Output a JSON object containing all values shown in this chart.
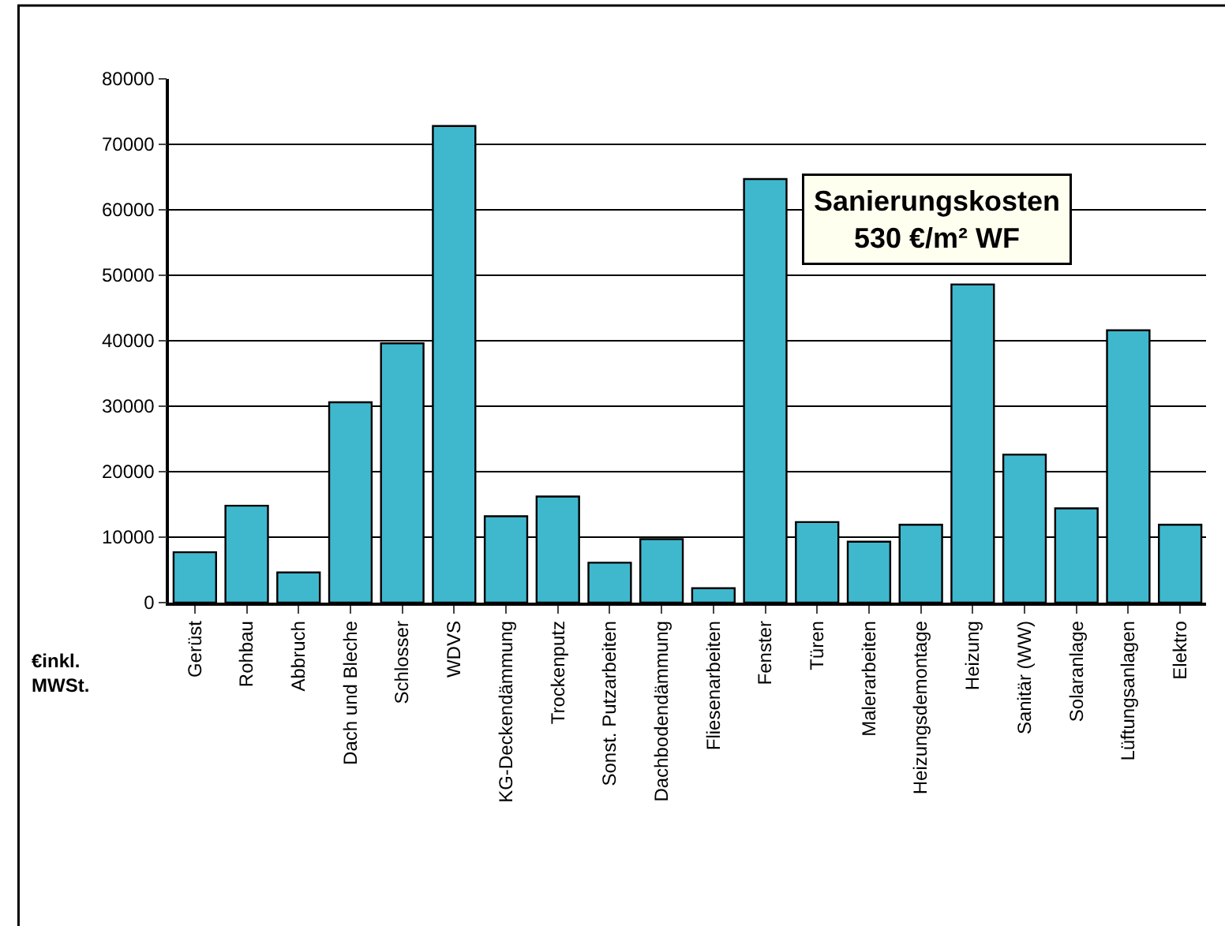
{
  "chart_data": {
    "type": "bar",
    "categories": [
      "Gerüst",
      "Rohbau",
      "Abbruch",
      "Dach und Bleche",
      "Schlosser",
      "WDVS",
      "KG-Deckendämmung",
      "Trockenputz",
      "Sonst. Putzarbeiten",
      "Dachbodendämmung",
      "Fliesenarbeiten",
      "Fenster",
      "Türen",
      "Malerarbeiten",
      "Heizungsdemontage",
      "Heizung",
      "Sanitär (WW)",
      "Solaranlage",
      "Lüftungsanlagen",
      "Elektro"
    ],
    "values": [
      7700,
      14800,
      4600,
      30600,
      39600,
      72800,
      13200,
      16200,
      6100,
      9700,
      2200,
      64700,
      12300,
      9300,
      11900,
      48600,
      22600,
      14400,
      41600,
      11900
    ],
    "color": "#3fb8ce",
    "ylim": [
      0,
      80000
    ],
    "yticks": [
      0,
      10000,
      20000,
      30000,
      40000,
      50000,
      60000,
      70000,
      80000
    ],
    "grid": "y",
    "legend": false,
    "annotations": [
      "Sanierungskosten\n530 €/m² WF",
      "€inkl.\nMWSt."
    ]
  }
}
